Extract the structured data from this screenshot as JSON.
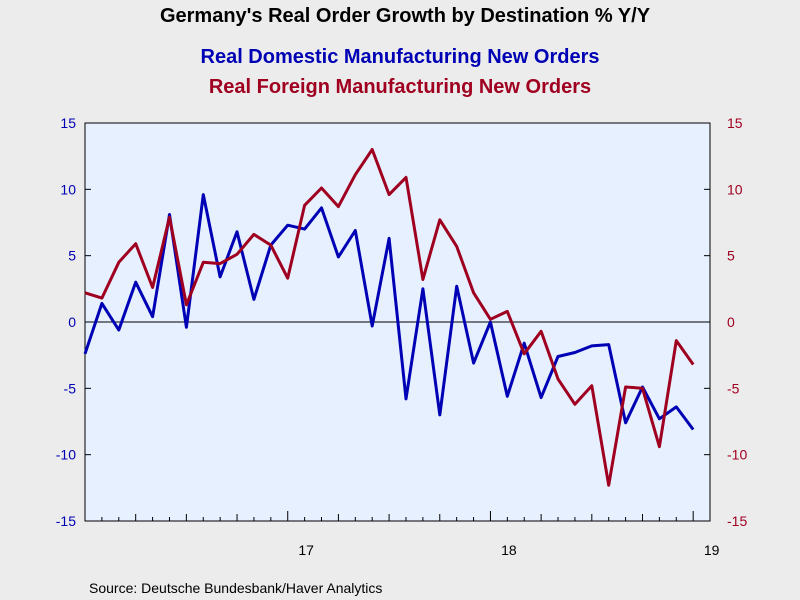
{
  "chart_data": {
    "type": "line",
    "title": "Germany's Real Order Growth by Destination % Y/Y",
    "source": "Source:  Deutsche Bundesbank/Haver Analytics",
    "x_tick_labels": [
      {
        "value": 2017.0,
        "label": "17"
      },
      {
        "value": 2018.0,
        "label": "18"
      },
      {
        "value": 2019.0,
        "label": "19"
      }
    ],
    "xlim": [
      2016.0,
      2019.083
    ],
    "ylim": [
      -15,
      15
    ],
    "y_ticks": [
      15,
      10,
      5,
      0,
      -5,
      -10,
      -15
    ],
    "colors": {
      "domestic": "#0000b4",
      "foreign": "#a00020",
      "background": "#e6f0ff"
    },
    "grid": false,
    "legend_position": "top",
    "x_start": "2016-01",
    "series": [
      {
        "name": "Real Domestic Manufacturing New Orders",
        "axis": "left",
        "color": "#0000b4",
        "values": [
          -2.4,
          1.4,
          -0.6,
          3.0,
          0.4,
          8.1,
          -0.4,
          9.6,
          3.4,
          6.8,
          1.7,
          5.8,
          7.3,
          7.0,
          8.6,
          4.9,
          6.9,
          -0.3,
          6.3,
          -5.8,
          2.5,
          -7.0,
          2.7,
          -3.1,
          0.0,
          -5.6,
          -1.6,
          -5.7,
          -2.6,
          -2.3,
          -1.8,
          -1.7,
          -7.6,
          -4.9,
          -7.3,
          -6.4,
          -8.1
        ]
      },
      {
        "name": "Real Foreign Manufacturing New Orders",
        "axis": "right",
        "color": "#a00020",
        "values": [
          2.2,
          1.8,
          4.5,
          5.9,
          2.6,
          7.9,
          1.3,
          4.5,
          4.4,
          5.1,
          6.6,
          5.8,
          3.3,
          8.8,
          10.1,
          8.7,
          11.1,
          13.0,
          9.6,
          10.9,
          3.2,
          7.7,
          5.7,
          2.2,
          0.2,
          0.8,
          -2.4,
          -0.7,
          -4.3,
          -6.2,
          -4.8,
          -12.3,
          -4.9,
          -5.0,
          -9.4,
          -1.4,
          -3.2
        ]
      }
    ]
  }
}
